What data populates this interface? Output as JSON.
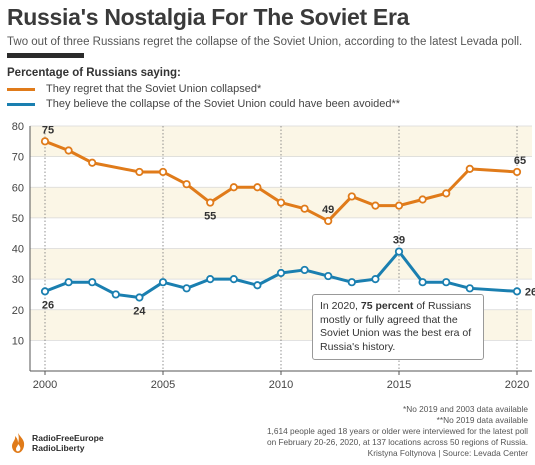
{
  "title": "Russia's Nostalgia For The Soviet Era",
  "subtitle": "Two out of three Russians regret the collapse of the Soviet Union, according to the latest Levada poll.",
  "legend_title": "Percentage of Russians saying:",
  "colors": {
    "orange": "#e07b1a",
    "blue": "#1a7fb0",
    "band": "#fbf6e6",
    "grid": "#d8d8d8"
  },
  "annotation": {
    "prefix": "In 2020, ",
    "bold": "75 percent",
    "suffix": " of Russians mostly or fully agreed that the Soviet Union was the best era of Russia's history."
  },
  "footnotes": [
    "*No 2019 and 2003 data available",
    "**No 2019 data available",
    "1,614 people aged 18 years or older were interviewed for the latest poll",
    "on February 20-26, 2020, at 137 locations across 50 regions of Russia.",
    "Kristyna Foltynova | Source: Levada Center"
  ],
  "brand": {
    "line1": "RadioFreeEurope",
    "line2": "RadioLiberty",
    "icon": "rfe-rl-flame-logo"
  },
  "chart_data": {
    "type": "line",
    "title": "Russia's Nostalgia For The Soviet Era",
    "xlabel": "",
    "ylabel": "",
    "xlim": [
      2000,
      2020
    ],
    "ylim": [
      0,
      80
    ],
    "x_ticks": [
      2000,
      2005,
      2010,
      2015,
      2020
    ],
    "y_ticks": [
      10,
      20,
      30,
      40,
      50,
      60,
      70,
      80
    ],
    "grid": "horizontal bands",
    "legend_position": "top-left",
    "series": [
      {
        "name": "They regret that the Soviet Union collapsed*",
        "color": "#e07b1a",
        "x": [
          2000,
          2001,
          2002,
          2004,
          2005,
          2006,
          2007,
          2008,
          2009,
          2010,
          2011,
          2012,
          2013,
          2014,
          2015,
          2016,
          2017,
          2018,
          2020
        ],
        "y": [
          75,
          72,
          68,
          65,
          65,
          61,
          55,
          60,
          60,
          55,
          53,
          49,
          57,
          54,
          54,
          56,
          58,
          66,
          65
        ],
        "labels": [
          {
            "x": 2000,
            "text": "75"
          },
          {
            "x": 2007,
            "text": "55"
          },
          {
            "x": 2012,
            "text": "49"
          },
          {
            "x": 2020,
            "text": "65"
          }
        ]
      },
      {
        "name": "They believe the collapse of the Soviet Union could have been avoided**",
        "color": "#1a7fb0",
        "x": [
          2000,
          2001,
          2002,
          2003,
          2004,
          2005,
          2006,
          2007,
          2008,
          2009,
          2010,
          2011,
          2012,
          2013,
          2014,
          2015,
          2016,
          2017,
          2018,
          2020
        ],
        "y": [
          26,
          29,
          29,
          25,
          24,
          29,
          27,
          30,
          30,
          28,
          32,
          33,
          31,
          29,
          30,
          39,
          29,
          29,
          27,
          26
        ],
        "labels": [
          {
            "x": 2000,
            "text": "26"
          },
          {
            "x": 2004,
            "text": "24"
          },
          {
            "x": 2015,
            "text": "39"
          },
          {
            "x": 2020,
            "text": "26"
          }
        ]
      }
    ]
  }
}
